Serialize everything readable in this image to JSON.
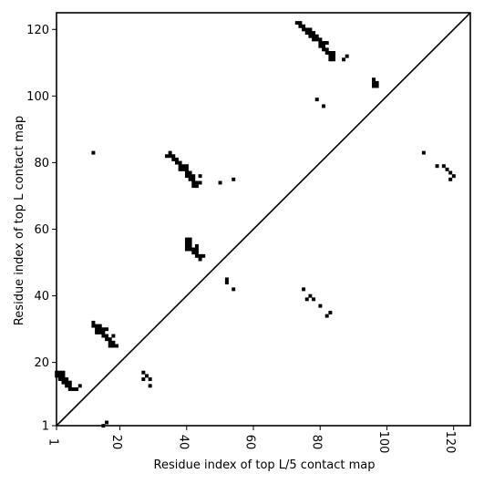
{
  "chart_data": {
    "type": "scatter",
    "title": "",
    "xlabel": "Residue index of top L/5 contact map",
    "ylabel": "Residue index of top L contact map",
    "xlim": [
      1,
      125
    ],
    "ylim": [
      1,
      125
    ],
    "xticks": [
      1,
      20,
      40,
      60,
      80,
      100,
      120
    ],
    "yticks": [
      1,
      20,
      40,
      60,
      80,
      100,
      120
    ],
    "diagonal": true,
    "marker_color": "#000000",
    "lower_triangle_top_L5": [
      [
        1,
        16
      ],
      [
        1,
        17
      ],
      [
        2,
        15
      ],
      [
        2,
        16
      ],
      [
        2,
        17
      ],
      [
        3,
        15
      ],
      [
        3,
        16
      ],
      [
        3,
        17
      ],
      [
        3,
        14
      ],
      [
        4,
        14
      ],
      [
        4,
        15
      ],
      [
        4,
        13
      ],
      [
        5,
        12
      ],
      [
        5,
        13
      ],
      [
        5,
        14
      ],
      [
        6,
        12
      ],
      [
        7,
        12
      ],
      [
        8,
        13
      ],
      [
        15,
        1
      ],
      [
        16,
        2
      ],
      [
        27,
        17
      ],
      [
        28,
        16
      ],
      [
        27,
        15
      ],
      [
        29,
        15
      ],
      [
        29,
        13
      ],
      [
        75,
        42
      ],
      [
        76,
        39
      ],
      [
        77,
        40
      ],
      [
        78,
        39
      ],
      [
        80,
        37
      ],
      [
        82,
        34
      ],
      [
        83,
        35
      ]
    ],
    "upper_triangle_top_L": [
      [
        12,
        83
      ],
      [
        12,
        31
      ],
      [
        12,
        32
      ],
      [
        13,
        29
      ],
      [
        13,
        30
      ],
      [
        13,
        31
      ],
      [
        14,
        29
      ],
      [
        14,
        30
      ],
      [
        14,
        31
      ],
      [
        15,
        28
      ],
      [
        15,
        29
      ],
      [
        15,
        30
      ],
      [
        16,
        27
      ],
      [
        16,
        28
      ],
      [
        16,
        30
      ],
      [
        17,
        25
      ],
      [
        17,
        26
      ],
      [
        17,
        27
      ],
      [
        18,
        25
      ],
      [
        18,
        26
      ],
      [
        18,
        28
      ],
      [
        19,
        25
      ],
      [
        34,
        82
      ],
      [
        35,
        82
      ],
      [
        35,
        83
      ],
      [
        36,
        81
      ],
      [
        36,
        82
      ],
      [
        37,
        80
      ],
      [
        37,
        81
      ],
      [
        38,
        78
      ],
      [
        38,
        79
      ],
      [
        38,
        80
      ],
      [
        39,
        78
      ],
      [
        39,
        79
      ],
      [
        40,
        76
      ],
      [
        40,
        77
      ],
      [
        40,
        78
      ],
      [
        40,
        79
      ],
      [
        41,
        75
      ],
      [
        41,
        76
      ],
      [
        41,
        77
      ],
      [
        42,
        73
      ],
      [
        42,
        74
      ],
      [
        42,
        75
      ],
      [
        42,
        76
      ],
      [
        43,
        73
      ],
      [
        43,
        74
      ],
      [
        44,
        74
      ],
      [
        44,
        76
      ],
      [
        40,
        54
      ],
      [
        40,
        55
      ],
      [
        40,
        56
      ],
      [
        40,
        57
      ],
      [
        41,
        54
      ],
      [
        41,
        55
      ],
      [
        41,
        56
      ],
      [
        41,
        57
      ],
      [
        42,
        53
      ],
      [
        42,
        54
      ],
      [
        43,
        52
      ],
      [
        43,
        53
      ],
      [
        43,
        54
      ],
      [
        43,
        55
      ],
      [
        44,
        51
      ],
      [
        44,
        52
      ],
      [
        45,
        52
      ],
      [
        50,
        74
      ],
      [
        52,
        44
      ],
      [
        52,
        45
      ],
      [
        54,
        75
      ],
      [
        54,
        42
      ],
      [
        73,
        122
      ],
      [
        74,
        121
      ],
      [
        74,
        122
      ],
      [
        75,
        120
      ],
      [
        75,
        121
      ],
      [
        76,
        119
      ],
      [
        76,
        120
      ],
      [
        77,
        118
      ],
      [
        77,
        119
      ],
      [
        77,
        120
      ],
      [
        78,
        117
      ],
      [
        78,
        118
      ],
      [
        78,
        119
      ],
      [
        79,
        117
      ],
      [
        79,
        118
      ],
      [
        80,
        115
      ],
      [
        80,
        116
      ],
      [
        80,
        117
      ],
      [
        81,
        115
      ],
      [
        81,
        116
      ],
      [
        81,
        114
      ],
      [
        82,
        113
      ],
      [
        82,
        114
      ],
      [
        82,
        116
      ],
      [
        83,
        111
      ],
      [
        83,
        112
      ],
      [
        83,
        113
      ],
      [
        84,
        111
      ],
      [
        84,
        112
      ],
      [
        84,
        113
      ],
      [
        87,
        111
      ],
      [
        88,
        112
      ],
      [
        79,
        99
      ],
      [
        81,
        97
      ],
      [
        96,
        103
      ],
      [
        96,
        104
      ],
      [
        96,
        105
      ],
      [
        97,
        103
      ],
      [
        97,
        104
      ],
      [
        111,
        83
      ],
      [
        115,
        79
      ],
      [
        117,
        79
      ],
      [
        118,
        78
      ],
      [
        119,
        77
      ],
      [
        119,
        75
      ],
      [
        120,
        76
      ]
    ]
  }
}
